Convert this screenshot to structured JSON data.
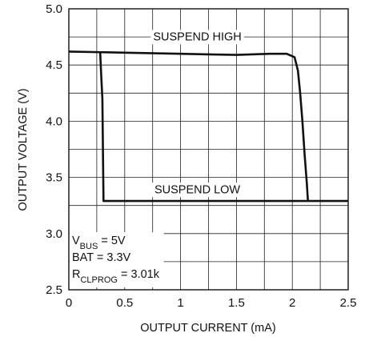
{
  "chart_data": {
    "type": "line",
    "title": "",
    "xlabel": "OUTPUT CURRENT (mA)",
    "ylabel": "OUTPUT VOLTAGE (V)",
    "xlim": [
      0,
      2.5
    ],
    "ylim": [
      2.5,
      5.0
    ],
    "x_ticks": [
      "0",
      "0.5",
      "1",
      "1.5",
      "2",
      "2.5"
    ],
    "y_ticks": [
      "2.5",
      "3.0",
      "3.5",
      "4.0",
      "4.5",
      "5.0"
    ],
    "x_tick_values": [
      0,
      0.5,
      1,
      1.5,
      2,
      2.5
    ],
    "y_tick_values": [
      2.5,
      3.0,
      3.5,
      4.0,
      4.5,
      5.0
    ],
    "grid": true,
    "series": [
      {
        "name": "SUSPEND HIGH",
        "x": [
          0.0,
          0.5,
          1.0,
          1.5,
          1.8,
          1.95,
          2.02,
          2.05,
          2.07,
          2.09,
          2.11,
          2.13,
          2.14
        ],
        "y": [
          4.62,
          4.61,
          4.6,
          4.59,
          4.6,
          4.6,
          4.57,
          4.45,
          4.25,
          4.0,
          3.7,
          3.45,
          3.29
        ]
      },
      {
        "name": "SUSPEND LOW",
        "x": [
          0.28,
          0.29,
          0.3,
          0.31,
          0.5,
          1.0,
          1.5,
          2.0,
          2.5
        ],
        "y": [
          4.62,
          4.4,
          4.2,
          3.29,
          3.29,
          3.29,
          3.29,
          3.29,
          3.29
        ]
      }
    ],
    "annotations": [
      {
        "text": "SUSPEND HIGH",
        "x": 1.15,
        "y": 4.72
      },
      {
        "text": "SUSPEND LOW",
        "x": 1.15,
        "y": 3.36
      }
    ],
    "conditions": [
      {
        "main": "V",
        "sub": "BUS",
        "rest": " = 5V"
      },
      {
        "main": "BAT = 3.3V",
        "sub": "",
        "rest": ""
      },
      {
        "main": "R",
        "sub": "CLPROG",
        "rest": " = 3.01k"
      }
    ]
  }
}
